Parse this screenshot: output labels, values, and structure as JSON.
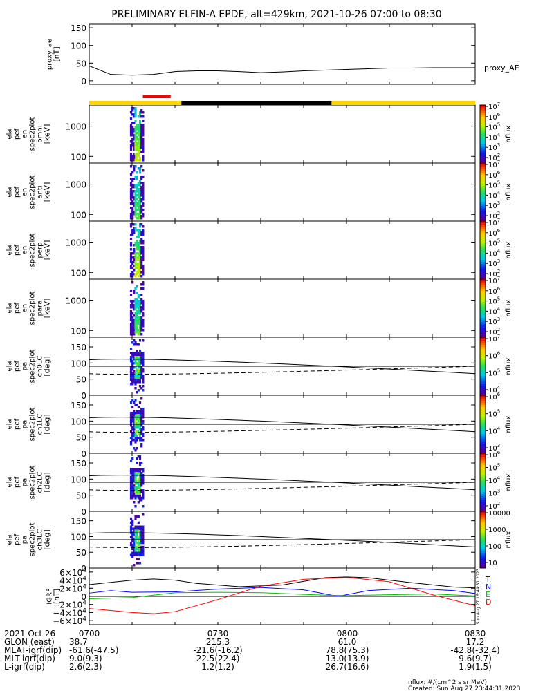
{
  "title": "PRELIMINARY ELFIN-A EPDE, alt=429km, 2021-10-26 07:00 to 08:30",
  "chart_data": [
    {
      "type": "line",
      "name": "proxy_ae",
      "ylabel": [
        "proxy_ae",
        "[nT]"
      ],
      "ylim": [
        -10,
        160
      ],
      "yticks": [
        "0",
        "50",
        "100",
        "150"
      ],
      "series": [
        {
          "name": "proxy_AE",
          "x_minutes": [
            0,
            5,
            10,
            15,
            20,
            25,
            30,
            35,
            40,
            45,
            50,
            55,
            60,
            65,
            70,
            75,
            80,
            85,
            90
          ],
          "values": [
            42,
            18,
            16,
            18,
            26,
            28,
            28,
            26,
            23,
            25,
            28,
            30,
            32,
            34,
            36,
            36,
            37,
            37,
            37
          ]
        }
      ]
    },
    {
      "type": "heatmap",
      "ylabel": [
        "ela",
        "pef",
        "en",
        "spec2plot",
        "omni",
        "[keV]"
      ],
      "yscale": "log",
      "yticks": [
        "100",
        "1000"
      ],
      "colorbar": {
        "label": "nflux",
        "ticks": [
          "10^7",
          "10^6",
          "10^5",
          "10^4",
          "10^3",
          "10^2"
        ]
      }
    },
    {
      "type": "heatmap",
      "ylabel": [
        "ela",
        "pef",
        "en",
        "spec2plot",
        "anti",
        "[keV]"
      ],
      "yscale": "log",
      "yticks": [
        "100",
        "1000"
      ],
      "colorbar": {
        "label": "nflux",
        "ticks": [
          "10^7",
          "10^6",
          "10^5",
          "10^4",
          "10^3",
          "10^2"
        ]
      }
    },
    {
      "type": "heatmap",
      "ylabel": [
        "ela",
        "pef",
        "en",
        "spec2plot",
        "perp",
        "[keV]"
      ],
      "yscale": "log",
      "yticks": [
        "100",
        "1000"
      ],
      "colorbar": {
        "label": "nflux",
        "ticks": [
          "10^7",
          "10^6",
          "10^5",
          "10^4",
          "10^3",
          "10^2"
        ]
      }
    },
    {
      "type": "heatmap",
      "ylabel": [
        "ela",
        "pef",
        "en",
        "spec2plot",
        "para",
        "[keV]"
      ],
      "yscale": "log",
      "yticks": [
        "100",
        "1000"
      ],
      "colorbar": {
        "label": "nflux",
        "ticks": [
          "10^7",
          "10^6",
          "10^5",
          "10^4",
          "10^3",
          "10^2"
        ]
      }
    },
    {
      "type": "heatmap",
      "ylabel": [
        "ela",
        "pef",
        "pa",
        "spec2plot",
        "ch0LC",
        "[deg]"
      ],
      "ylim": [
        0,
        180
      ],
      "yticks": [
        "0",
        "50",
        "100",
        "150"
      ],
      "colorbar": {
        "label": "nflux",
        "ticks": [
          "10^7",
          "10^6",
          "10^5",
          "10^4"
        ]
      }
    },
    {
      "type": "heatmap",
      "ylabel": [
        "ela",
        "pef",
        "pa",
        "spec2plot",
        "ch1LC",
        "[deg]"
      ],
      "ylim": [
        0,
        180
      ],
      "yticks": [
        "0",
        "50",
        "100",
        "150"
      ],
      "colorbar": {
        "label": "nflux",
        "ticks": [
          "10^6",
          "10^5",
          "10^4",
          "10^3"
        ]
      }
    },
    {
      "type": "heatmap",
      "ylabel": [
        "ela",
        "pef",
        "pa",
        "spec2plot",
        "ch2LC",
        "[deg]"
      ],
      "ylim": [
        0,
        180
      ],
      "yticks": [
        "0",
        "50",
        "100",
        "150"
      ],
      "colorbar": {
        "label": "nflux",
        "ticks": [
          "10^6",
          "10^5",
          "10^4",
          "10^3",
          "10^2"
        ]
      }
    },
    {
      "type": "heatmap",
      "ylabel": [
        "ela",
        "pef",
        "pa",
        "spec2plot",
        "ch3LC",
        "[deg]"
      ],
      "ylim": [
        0,
        180
      ],
      "yticks": [
        "0",
        "50",
        "100",
        "150"
      ],
      "colorbar": {
        "label": "nflux",
        "ticks": [
          "10000",
          "1000",
          "100",
          "10"
        ]
      }
    },
    {
      "type": "line",
      "ylabel": [
        "IGRF",
        "[nT]"
      ],
      "ylim": [
        -70000,
        70000
      ],
      "yticks": [
        "6×10^4",
        "4×10^4",
        "2×10^4",
        "0",
        "−2×10^4",
        "−4×10^4",
        "−6×10^4"
      ],
      "legend": [
        "T",
        "N",
        "E",
        "D"
      ],
      "legend_colors": [
        "#000000",
        "#0000ff",
        "#00c000",
        "#ff0000"
      ],
      "series": [
        {
          "name": "T",
          "x_minutes": [
            0,
            10,
            15,
            20,
            25,
            35,
            45,
            55,
            60,
            65,
            75,
            85,
            90
          ],
          "values": [
            29000,
            40000,
            43000,
            40000,
            32000,
            24000,
            28000,
            46000,
            48000,
            46000,
            34000,
            23000,
            21000
          ]
        },
        {
          "name": "N",
          "x_minutes": [
            0,
            5,
            10,
            20,
            30,
            40,
            50,
            58,
            65,
            75,
            85,
            90
          ],
          "values": [
            8000,
            14000,
            10000,
            11000,
            18000,
            22000,
            16000,
            0,
            14000,
            20000,
            14000,
            7000
          ]
        },
        {
          "name": "E",
          "x_minutes": [
            0,
            10,
            20,
            30,
            40,
            50,
            55,
            60,
            70,
            80,
            90
          ],
          "values": [
            -6000,
            -3000,
            9000,
            10000,
            9000,
            5000,
            3000,
            2000,
            4000,
            6000,
            1000
          ]
        },
        {
          "name": "D",
          "x_minutes": [
            0,
            10,
            15,
            20,
            30,
            40,
            50,
            60,
            70,
            80,
            90
          ],
          "values": [
            -30000,
            -40000,
            -43000,
            -38000,
            -8000,
            25000,
            42000,
            47000,
            36000,
            4000,
            -23000
          ]
        }
      ]
    }
  ],
  "orbit_bar": {
    "colors": {
      "sunlit": "#ffd700",
      "shadow": "#000000",
      "science": "#ff0000"
    }
  },
  "x_axis": {
    "ticks": [
      "0700",
      "0730",
      "0800",
      "0830"
    ],
    "rows": [
      {
        "label": "2021 Oct 26",
        "values": [
          "0700",
          "0730",
          "0800",
          "0830"
        ]
      },
      {
        "label": "GLON (east)",
        "values": [
          "38.7",
          "215.3",
          "61.0",
          "17.2"
        ]
      },
      {
        "label": "MLAT-igrf(dip)",
        "values": [
          "-61.6(-47.5)",
          "-21.6(-16.2)",
          "78.8(75.3)",
          "-42.8(-32.4)"
        ]
      },
      {
        "label": "MLT-igrf(dip)",
        "values": [
          "9.0(9.3)",
          "22.5(22.4)",
          "13.0(13.9)",
          "9.6(9.7)"
        ]
      },
      {
        "label": "L-igrf(dip)",
        "values": [
          "2.6(2.3)",
          "1.2(1.2)",
          "26.7(16.6)",
          "1.9(1.5)"
        ]
      }
    ]
  },
  "footer": {
    "units": "nflux: #/(cm^2 s sr MeV)",
    "created": "Created: Sun Aug 27 23:44:31 2023",
    "side_stamp": "Sun Aug 27 16:44:31 2023"
  }
}
